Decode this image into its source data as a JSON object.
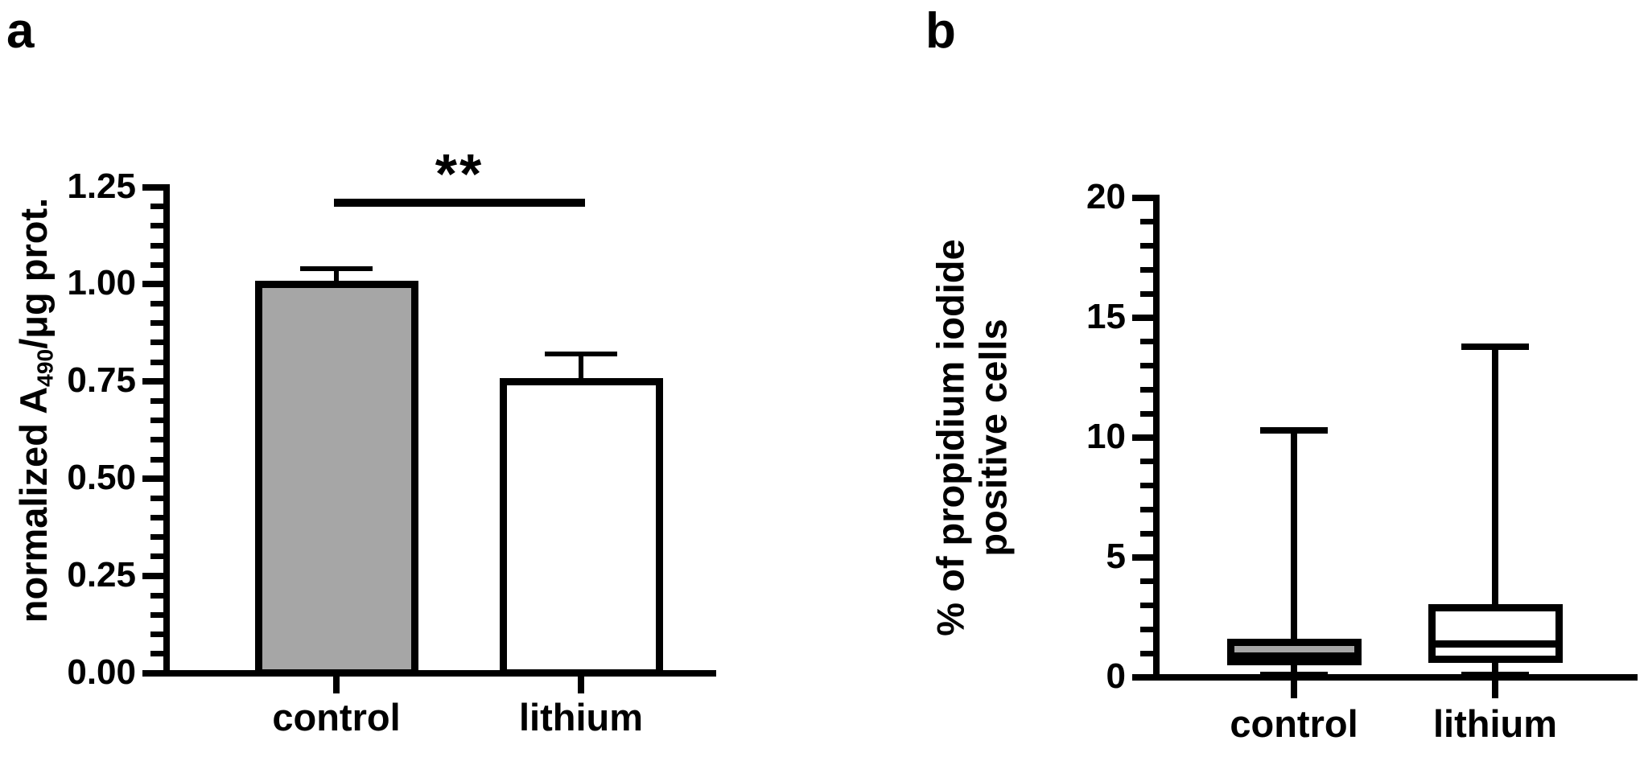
{
  "figure": {
    "background": "#ffffff",
    "ink_color": "#000000"
  },
  "chart_data": [
    {
      "type": "bar",
      "panel_label": "a",
      "title": "",
      "xlabel": "",
      "ylabel": {
        "pre": "normalized A",
        "sub": "490",
        "post": "/μg prot."
      },
      "ylabel_text": "normalized A490/μg prot.",
      "categories": [
        "control",
        "lithium"
      ],
      "values": [
        1.0,
        0.75
      ],
      "errors_plus": [
        0.04,
        0.07
      ],
      "error_tops": [
        1.04,
        0.82
      ],
      "bar_fills": [
        "#A6A6A6",
        "#FFFFFF"
      ],
      "bar_border_color": "#000000",
      "ylim": [
        0,
        1.25
      ],
      "yticks": {
        "values": [
          0,
          0.25,
          0.5,
          0.75,
          1.0,
          1.25
        ],
        "labels": [
          "0.00",
          "0.25",
          "0.50",
          "0.75",
          "1.00",
          "1.25"
        ]
      },
      "minor_tick_step": 0.05,
      "grid": false,
      "significance": {
        "label": "**",
        "between": [
          "control",
          "lithium"
        ],
        "bar_y_value": 1.21
      }
    },
    {
      "type": "box",
      "panel_label": "b",
      "title": "",
      "xlabel": "",
      "ylabel_lines": [
        "% of propidium iodide",
        "positive cells"
      ],
      "ylabel_text": "% of propidium iodide positive cells",
      "categories": [
        "control",
        "lithium"
      ],
      "series": [
        {
          "name": "control",
          "min": 0.1,
          "q1": 0.65,
          "median": 0.9,
          "q3": 1.45,
          "max": 10.3,
          "fill": "#A6A6A6"
        },
        {
          "name": "lithium",
          "min": 0.1,
          "q1": 0.75,
          "median": 1.4,
          "q3": 2.9,
          "max": 13.8,
          "fill": "#FFFFFF"
        }
      ],
      "ylim": [
        0,
        20
      ],
      "yticks": {
        "values": [
          0,
          5,
          10,
          15,
          20
        ],
        "labels": [
          "0",
          "5",
          "10",
          "15",
          "20"
        ]
      },
      "minor_tick_step": 1,
      "grid": false
    }
  ]
}
